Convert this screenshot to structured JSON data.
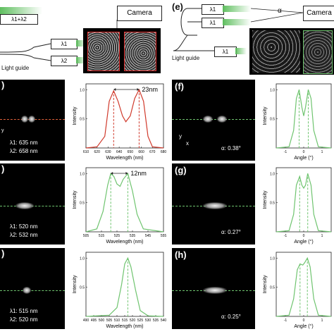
{
  "top_left": {
    "combined_label": "λ1+λ2",
    "camera_label": "Camera",
    "lambda1_box": "λ1",
    "lambda2_box": "λ2",
    "light_guide": "Light guide"
  },
  "top_right": {
    "panel_letter": "(e)",
    "camera_label": "Camera",
    "alpha_label": "α",
    "lambda_box_1": "λ1",
    "lambda_box_2": "λ1",
    "lambda_box_3": "λ1",
    "light_guide": "Light guide"
  },
  "left_rows": [
    {
      "panel_letter": ")",
      "line1": "λ1: 635 nm",
      "line2": "λ2: 658 nm",
      "line_color": "#e0603a"
    },
    {
      "panel_letter": ")",
      "line1": "λ1: 520 nm",
      "line2": "λ2: 532 nm",
      "line_color": "#6fc46f"
    },
    {
      "panel_letter": ")",
      "line1": "λ1: 515 nm",
      "line2": "λ2: 520 nm",
      "line_color": "#6fc46f"
    }
  ],
  "right_rows": [
    {
      "panel_letter": "(f)",
      "alpha": "α: 0.38°"
    },
    {
      "panel_letter": "(g)",
      "alpha": "α: 0.27°"
    },
    {
      "panel_letter": "(h)",
      "alpha": "α: 0.25°"
    }
  ],
  "axes": {
    "y_label": "Intensity",
    "x_label_wavelength": "Wavelength (nm)",
    "x_label_angle": "Angle (°)",
    "axis_x": "x",
    "axis_y": "y"
  },
  "chart_data": [
    {
      "type": "line",
      "panel": "spectrum-1",
      "color": "#d0392b",
      "annotation": "23nm",
      "x_ticks": [
        "610",
        "620",
        "630",
        "640",
        "650",
        "660",
        "670",
        "680"
      ],
      "y_ticks": [
        "0.5",
        "1.0"
      ],
      "xlim": [
        610,
        680
      ],
      "ylim": [
        0,
        1.1
      ],
      "x": [
        610,
        620,
        627,
        631,
        635,
        639,
        643,
        646,
        650,
        654,
        658,
        662,
        666,
        670,
        680
      ],
      "y": [
        0,
        0.02,
        0.2,
        0.8,
        0.98,
        0.8,
        0.55,
        0.45,
        0.55,
        0.85,
        1.0,
        0.8,
        0.2,
        0.02,
        0
      ]
    },
    {
      "type": "line",
      "panel": "spectrum-2",
      "color": "#6fc46f",
      "annotation": "12nm",
      "x_ticks": [
        "505",
        "515",
        "525",
        "535",
        "545",
        "555"
      ],
      "y_ticks": [
        "0.5",
        "1.0"
      ],
      "xlim": [
        505,
        555
      ],
      "ylim": [
        0,
        1.1
      ],
      "x": [
        505,
        512,
        516,
        519,
        521,
        523,
        525,
        527,
        529,
        532,
        535,
        538,
        542,
        555
      ],
      "y": [
        0,
        0.05,
        0.35,
        0.8,
        1.0,
        0.95,
        0.82,
        0.78,
        0.9,
        1.0,
        0.7,
        0.3,
        0.05,
        0
      ]
    },
    {
      "type": "line",
      "panel": "spectrum-3",
      "color": "#6fc46f",
      "x_ticks": [
        "490",
        "495",
        "500",
        "505",
        "510",
        "515",
        "520",
        "525",
        "530",
        "535",
        "540"
      ],
      "y_ticks": [
        "0.5",
        "1.0"
      ],
      "xlim": [
        490,
        540
      ],
      "ylim": [
        0,
        1.1
      ],
      "x": [
        490,
        505,
        510,
        513,
        515,
        517,
        519,
        522,
        525,
        530,
        540
      ],
      "y": [
        0,
        0.02,
        0.15,
        0.55,
        0.9,
        1.0,
        0.85,
        0.45,
        0.1,
        0.01,
        0
      ]
    },
    {
      "type": "line",
      "panel": "angle-1",
      "color": "#6fc46f",
      "x_ticks": [
        "-1",
        "0",
        "1"
      ],
      "y_ticks": [
        "0.5",
        "1.0"
      ],
      "xlim": [
        -1.5,
        1.5
      ],
      "ylim": [
        0,
        1.1
      ],
      "x": [
        -1.5,
        -0.8,
        -0.55,
        -0.4,
        -0.25,
        -0.1,
        0,
        0.1,
        0.25,
        0.4,
        0.55,
        0.8,
        1.5
      ],
      "y": [
        0,
        0.02,
        0.3,
        0.85,
        1.0,
        0.7,
        0.55,
        0.7,
        1.0,
        0.85,
        0.3,
        0.02,
        0
      ]
    },
    {
      "type": "line",
      "panel": "angle-2",
      "color": "#6fc46f",
      "x_ticks": [
        "-1",
        "0",
        "1"
      ],
      "y_ticks": [
        "0.5",
        "1.0"
      ],
      "xlim": [
        -1.5,
        1.5
      ],
      "ylim": [
        0,
        1.1
      ],
      "x": [
        -1.5,
        -0.8,
        -0.55,
        -0.4,
        -0.22,
        -0.1,
        0,
        0.1,
        0.22,
        0.4,
        0.55,
        0.8,
        1.5
      ],
      "y": [
        0,
        0.02,
        0.3,
        0.8,
        0.95,
        0.8,
        0.75,
        0.8,
        1.0,
        0.8,
        0.3,
        0.02,
        0
      ]
    },
    {
      "type": "line",
      "panel": "angle-3",
      "color": "#6fc46f",
      "x_ticks": [
        "-1",
        "0",
        "1"
      ],
      "y_ticks": [
        "0.5",
        "1.0"
      ],
      "xlim": [
        -1.5,
        1.5
      ],
      "ylim": [
        0,
        1.1
      ],
      "x": [
        -1.5,
        -0.8,
        -0.55,
        -0.35,
        -0.2,
        -0.05,
        0.05,
        0.2,
        0.35,
        0.55,
        0.8,
        1.5
      ],
      "y": [
        0,
        0.02,
        0.3,
        0.8,
        0.9,
        0.88,
        0.92,
        1.0,
        0.85,
        0.3,
        0.02,
        0
      ]
    }
  ]
}
